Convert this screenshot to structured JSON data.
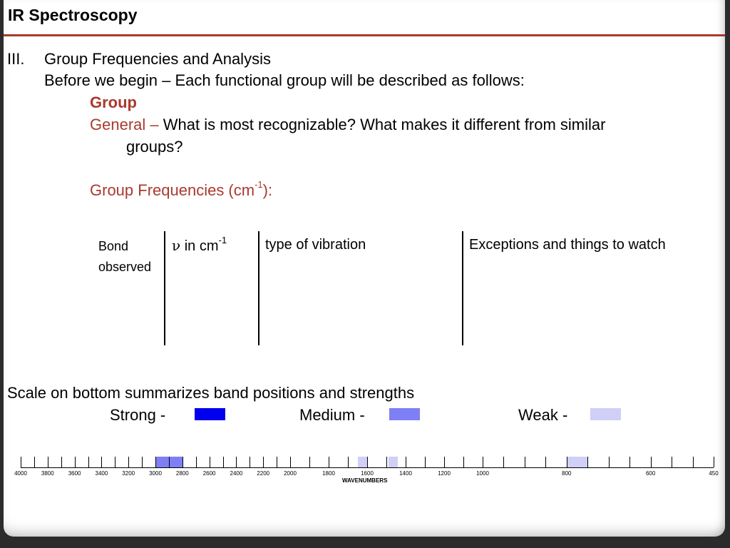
{
  "slide": {
    "title": "IR Spectroscopy",
    "section_number": "III.",
    "section_title": "Group Frequencies and Analysis",
    "intro": "Before we begin – Each functional group will be described as follows:",
    "group_label": "Group",
    "general_label": "General –",
    "general_text": "What is most recognizable? What makes it different from similar",
    "general_text_cont": "groups?",
    "freq_label": "Group Frequencies (cm",
    "freq_sup": "-1",
    "freq_end": "):"
  },
  "table": {
    "col1_line1": "Bond",
    "col1_line2": "observed",
    "col2_symbol": "ν",
    "col2_text": " in cm",
    "col2_sup": "-1",
    "col3": "type of vibration",
    "col4": "Exceptions and things to watch"
  },
  "legend": {
    "caption": "Scale on bottom summarizes band positions and strengths",
    "strong": "Strong -",
    "medium": "Medium -",
    "weak": "Weak -",
    "colors": {
      "strong": "#0000ee",
      "medium": "#7f7ff5",
      "weak": "#cfcff8"
    }
  },
  "scale": {
    "axis_title": "WAVENUMBERS",
    "tick_labels": [
      "4000",
      "3800",
      "3600",
      "3400",
      "3200",
      "3000",
      "2800",
      "2600",
      "2400",
      "2200",
      "2000",
      "1800",
      "1600",
      "1400",
      "1200",
      "1000",
      "800",
      "600",
      "450"
    ],
    "bands": [
      {
        "from": 3000,
        "to": 2800,
        "strength": "medium"
      },
      {
        "from": 1650,
        "to": 1600,
        "strength": "weak"
      },
      {
        "from": 1490,
        "to": 1440,
        "strength": "weak"
      },
      {
        "from": 800,
        "to": 750,
        "strength": "weak"
      }
    ]
  }
}
